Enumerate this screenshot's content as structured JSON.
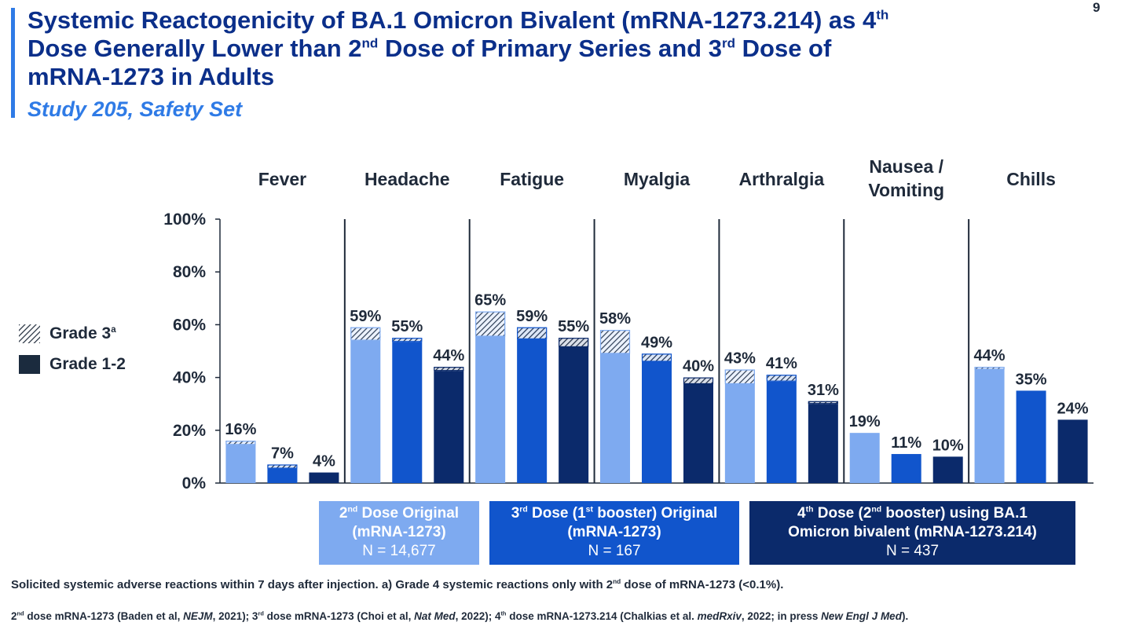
{
  "page_number": "9",
  "title": {
    "line1_a": "Systemic Reactogenicity of BA.1 Omicron Bivalent (mRNA-1273.214) as 4",
    "line1_sup": "th",
    "line2_a": "Dose Generally Lower than 2",
    "line2_sup1": "nd",
    "line2_b": " Dose of Primary Series and 3",
    "line2_sup2": "rd",
    "line2_c": " Dose of",
    "line3": "mRNA-1273 in Adults"
  },
  "subtitle": "Study 205, Safety Set",
  "legend": {
    "grade3": "Grade 3",
    "grade3_sup": "a",
    "grade12": "Grade 1-2"
  },
  "groups": [
    {
      "line1_pre": "2",
      "line1_sup": "nd",
      "line1_post": " Dose Original",
      "line2": "(mRNA-1273)",
      "n": "N = 14,677",
      "color": "#7eaaf0"
    },
    {
      "line1_pre": "3",
      "line1_sup": "rd",
      "line1_post": " Dose (1",
      "line1_sup2": "st",
      "line1_post2": " booster) Original",
      "line2": "(mRNA-1273)",
      "n": "N = 167",
      "color": "#1155cc"
    },
    {
      "line1_pre": "4",
      "line1_sup": "th",
      "line1_post": " Dose (2",
      "line1_sup2": "nd",
      "line1_post2": " booster) using BA.1",
      "line2": "Omicron bivalent (mRNA-1273.214)",
      "n": "N = 437",
      "color": "#0b2a6b"
    }
  ],
  "footnote1": {
    "a": "Solicited systemic adverse reactions within 7 days after injection. a) Grade 4 systemic reactions only with 2",
    "sup": "nd",
    "b": " dose of mRNA-1273 (<0.1%)."
  },
  "footnote2": {
    "p1": "2",
    "s1": "nd",
    "t1": " dose mRNA-1273 (Baden et al, ",
    "i1": "NEJM",
    "t2": ", 2021); 3",
    "s2": "rd",
    "t3": " dose mRNA-1273 (Choi et al, ",
    "i2": "Nat Med",
    "t4": ", 2022); 4",
    "s3": "th",
    "t5": " dose mRNA-1273.214 (Chalkias et al. ",
    "i3": "medRxiv",
    "t6": ", 2022; in press ",
    "i4": "New Engl J Med",
    "t7": ")."
  },
  "chart_data": {
    "type": "bar",
    "stacked": true,
    "ylim": [
      0,
      100
    ],
    "yticks": [
      "0%",
      "20%",
      "40%",
      "60%",
      "80%",
      "100%"
    ],
    "categories": [
      "Fever",
      "Headache",
      "Fatigue",
      "Myalgia",
      "Arthralgia",
      "Nausea / Vomiting",
      "Chills"
    ],
    "category_lines": [
      [
        "Fever"
      ],
      [
        "Headache"
      ],
      [
        "Fatigue"
      ],
      [
        "Myalgia"
      ],
      [
        "Arthralgia"
      ],
      [
        "Nausea /",
        "Vomiting"
      ],
      [
        "Chills"
      ]
    ],
    "series": [
      {
        "name": "2nd Dose Original (mRNA-1273)",
        "color": "#7eaaf0",
        "totals": [
          16,
          59,
          65,
          58,
          43,
          19,
          44
        ],
        "labels": [
          "16%",
          "59%",
          "65%",
          "58%",
          "43%",
          "19%",
          "44%"
        ],
        "grade12": [
          14.5,
          54,
          55.5,
          49,
          37.5,
          19,
          43
        ],
        "grade3": [
          1.5,
          5,
          9.5,
          9,
          5.5,
          0,
          1
        ]
      },
      {
        "name": "3rd Dose (1st booster) Original (mRNA-1273)",
        "color": "#1155cc",
        "totals": [
          7,
          55,
          59,
          49,
          41,
          11,
          35
        ],
        "labels": [
          "7%",
          "55%",
          "59%",
          "49%",
          "41%",
          "11%",
          "35%"
        ],
        "grade12": [
          5.5,
          53.5,
          54.5,
          46,
          38.5,
          11,
          35
        ],
        "grade3": [
          1.5,
          1.5,
          4.5,
          3,
          2.5,
          0,
          0
        ]
      },
      {
        "name": "4th Dose (2nd booster) using BA.1 Omicron bivalent (mRNA-1273.214)",
        "color": "#0b2a6b",
        "totals": [
          4,
          44,
          55,
          40,
          31,
          10,
          24
        ],
        "labels": [
          "4%",
          "44%",
          "55%",
          "40%",
          "31%",
          "10%",
          "24%"
        ],
        "grade12": [
          4,
          42.5,
          51.5,
          37.5,
          30,
          10,
          24
        ],
        "grade3": [
          0,
          1.5,
          3.5,
          2.5,
          1,
          0,
          0
        ]
      }
    ]
  }
}
